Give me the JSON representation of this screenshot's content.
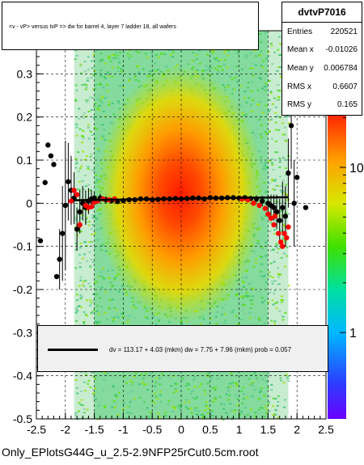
{
  "title": "<v - vP>       versus  tvP =>  dw for barrel 4, layer 7 ladder 18, all wafers",
  "stats": {
    "name": "dvtvP7016",
    "rows": [
      {
        "key": "Entries",
        "value": "220521"
      },
      {
        "key": "Mean x",
        "value": "-0.01026"
      },
      {
        "key": "Mean y",
        "value": "0.006784"
      },
      {
        "key": "RMS x",
        "value": "0.6607"
      },
      {
        "key": "RMS y",
        "value": "0.165"
      }
    ]
  },
  "fit_text": "dv =  113.17 +  4.03 (mkm) dw =     7.75 +  7.96 (mkm) prob = 0.057",
  "file_label": "Only_EPlotsG44G_u_2.5-2.9NFP25rCut0.5cm.root",
  "chart_data": {
    "type": "heatmap",
    "x_ticks": [
      "-2.5",
      "-2",
      "-1.5",
      "-1",
      "-0.5",
      "0",
      "0.5",
      "1",
      "1.5",
      "2",
      "2.5"
    ],
    "x_tick_values": [
      -2.5,
      -2,
      -1.5,
      -1,
      -0.5,
      0,
      0.5,
      1,
      1.5,
      2,
      2.5
    ],
    "y_ticks": [
      "-0.5",
      "-0.4",
      "-0.3",
      "-0.2",
      "-0.1",
      "0",
      "0.1",
      "0.2",
      "0.3"
    ],
    "y_tick_values": [
      -0.5,
      -0.4,
      -0.3,
      -0.2,
      -0.1,
      0,
      0.1,
      0.2,
      0.3
    ],
    "xlim": [
      -2.5,
      2.5
    ],
    "ylim": [
      -0.5,
      0.4
    ],
    "z_ticks": [
      "1",
      "10"
    ],
    "z_tick_values": [
      1,
      10
    ],
    "z_scale": "log",
    "grid": true,
    "colors": {
      "profile_black": "#000000",
      "profile_red": "#ff0000",
      "fit_line": "#000000",
      "palette_low": "#66ccaa",
      "palette_high": "#ff2200"
    },
    "fit_line": {
      "x": [
        -1.85,
        1.85
      ],
      "y": [
        0.007,
        0.014
      ]
    },
    "profile_black": [
      {
        "x": -2.43,
        "y": -0.087,
        "e": 0.0
      },
      {
        "x": -2.35,
        "y": 0.048,
        "e": 0.0
      },
      {
        "x": -2.3,
        "y": 0.135,
        "e": 0.0
      },
      {
        "x": -2.25,
        "y": 0.11,
        "e": 0.0
      },
      {
        "x": -2.2,
        "y": 0.09,
        "e": 0.0
      },
      {
        "x": -2.15,
        "y": -0.17,
        "e": 0.0
      },
      {
        "x": -2.1,
        "y": -0.13,
        "e": 0.07
      },
      {
        "x": -2.05,
        "y": -0.07,
        "e": 0.11
      },
      {
        "x": -2.0,
        "y": -0.005,
        "e": 0.15
      },
      {
        "x": -1.95,
        "y": 0.05,
        "e": 0.09
      },
      {
        "x": -1.9,
        "y": 0.03,
        "e": 0.08
      },
      {
        "x": -1.85,
        "y": 0.012,
        "e": 0.06
      },
      {
        "x": -1.8,
        "y": -0.06,
        "e": 0.05
      },
      {
        "x": -1.75,
        "y": -0.02,
        "e": 0.05
      },
      {
        "x": -1.7,
        "y": 0.0,
        "e": 0.04
      },
      {
        "x": -1.65,
        "y": -0.01,
        "e": 0.04
      },
      {
        "x": -1.6,
        "y": 0.005,
        "e": 0.03
      },
      {
        "x": -1.55,
        "y": 0.01,
        "e": 0.02
      },
      {
        "x": -1.5,
        "y": 0.012,
        "e": 0.015
      },
      {
        "x": -1.4,
        "y": 0.012,
        "e": 0.01
      },
      {
        "x": -1.3,
        "y": 0.008,
        "e": 0.008
      },
      {
        "x": -1.2,
        "y": 0.006,
        "e": 0.005
      },
      {
        "x": -1.1,
        "y": 0.004,
        "e": 0.004
      },
      {
        "x": -1.0,
        "y": 0.006,
        "e": 0.003
      },
      {
        "x": -0.9,
        "y": 0.008,
        "e": 0.003
      },
      {
        "x": -0.8,
        "y": 0.008,
        "e": 0.003
      },
      {
        "x": -0.7,
        "y": 0.01,
        "e": 0.002
      },
      {
        "x": -0.6,
        "y": 0.01,
        "e": 0.002
      },
      {
        "x": -0.5,
        "y": 0.008,
        "e": 0.002
      },
      {
        "x": -0.4,
        "y": 0.009,
        "e": 0.002
      },
      {
        "x": -0.3,
        "y": 0.01,
        "e": 0.002
      },
      {
        "x": -0.2,
        "y": 0.01,
        "e": 0.002
      },
      {
        "x": -0.1,
        "y": 0.011,
        "e": 0.002
      },
      {
        "x": 0.0,
        "y": 0.01,
        "e": 0.002
      },
      {
        "x": 0.1,
        "y": 0.011,
        "e": 0.002
      },
      {
        "x": 0.2,
        "y": 0.012,
        "e": 0.002
      },
      {
        "x": 0.3,
        "y": 0.012,
        "e": 0.002
      },
      {
        "x": 0.4,
        "y": 0.01,
        "e": 0.002
      },
      {
        "x": 0.5,
        "y": 0.013,
        "e": 0.002
      },
      {
        "x": 0.6,
        "y": 0.012,
        "e": 0.002
      },
      {
        "x": 0.7,
        "y": 0.012,
        "e": 0.002
      },
      {
        "x": 0.8,
        "y": 0.013,
        "e": 0.003
      },
      {
        "x": 0.9,
        "y": 0.013,
        "e": 0.003
      },
      {
        "x": 1.0,
        "y": 0.012,
        "e": 0.003
      },
      {
        "x": 1.1,
        "y": 0.013,
        "e": 0.004
      },
      {
        "x": 1.2,
        "y": 0.011,
        "e": 0.005
      },
      {
        "x": 1.3,
        "y": 0.01,
        "e": 0.008
      },
      {
        "x": 1.4,
        "y": 0.005,
        "e": 0.012
      },
      {
        "x": 1.5,
        "y": 0.0,
        "e": 0.02
      },
      {
        "x": 1.55,
        "y": -0.005,
        "e": 0.025
      },
      {
        "x": 1.6,
        "y": -0.01,
        "e": 0.03
      },
      {
        "x": 1.65,
        "y": -0.02,
        "e": 0.04
      },
      {
        "x": 1.7,
        "y": -0.04,
        "e": 0.05
      },
      {
        "x": 1.75,
        "y": -0.01,
        "e": 0.06
      },
      {
        "x": 1.8,
        "y": -0.03,
        "e": 0.07
      },
      {
        "x": 1.85,
        "y": 0.07,
        "e": 0.08
      },
      {
        "x": 1.9,
        "y": 0.18,
        "e": 0.1
      },
      {
        "x": 1.95,
        "y": 0.0,
        "e": 0.1
      },
      {
        "x": 2.0,
        "y": 0.06,
        "e": 0.0
      },
      {
        "x": 2.15,
        "y": -0.01,
        "e": 0.0
      }
    ],
    "profile_red": [
      {
        "x": -1.9,
        "y": 0.005
      },
      {
        "x": -1.85,
        "y": 0.03
      },
      {
        "x": -1.8,
        "y": 0.02
      },
      {
        "x": -1.75,
        "y": -0.05
      },
      {
        "x": -1.65,
        "y": -0.005
      },
      {
        "x": -1.6,
        "y": -0.01
      },
      {
        "x": -1.55,
        "y": -0.008
      },
      {
        "x": -1.5,
        "y": 0.002
      },
      {
        "x": -1.45,
        "y": 0.005
      },
      {
        "x": -1.35,
        "y": 0.01
      },
      {
        "x": -1.25,
        "y": 0.008
      },
      {
        "x": -1.15,
        "y": 0.01
      },
      {
        "x": 1.05,
        "y": 0.01
      },
      {
        "x": 1.15,
        "y": 0.008
      },
      {
        "x": 1.25,
        "y": 0.0
      },
      {
        "x": 1.35,
        "y": -0.005
      },
      {
        "x": 1.45,
        "y": -0.012
      },
      {
        "x": 1.5,
        "y": -0.025
      },
      {
        "x": 1.55,
        "y": -0.035
      },
      {
        "x": 1.6,
        "y": -0.05
      },
      {
        "x": 1.62,
        "y": -0.03
      },
      {
        "x": 1.68,
        "y": -0.07
      },
      {
        "x": 1.72,
        "y": -0.09
      },
      {
        "x": 1.75,
        "y": -0.1
      },
      {
        "x": 1.78,
        "y": -0.07
      },
      {
        "x": 1.82,
        "y": -0.08
      },
      {
        "x": 1.85,
        "y": -0.055
      }
    ]
  }
}
